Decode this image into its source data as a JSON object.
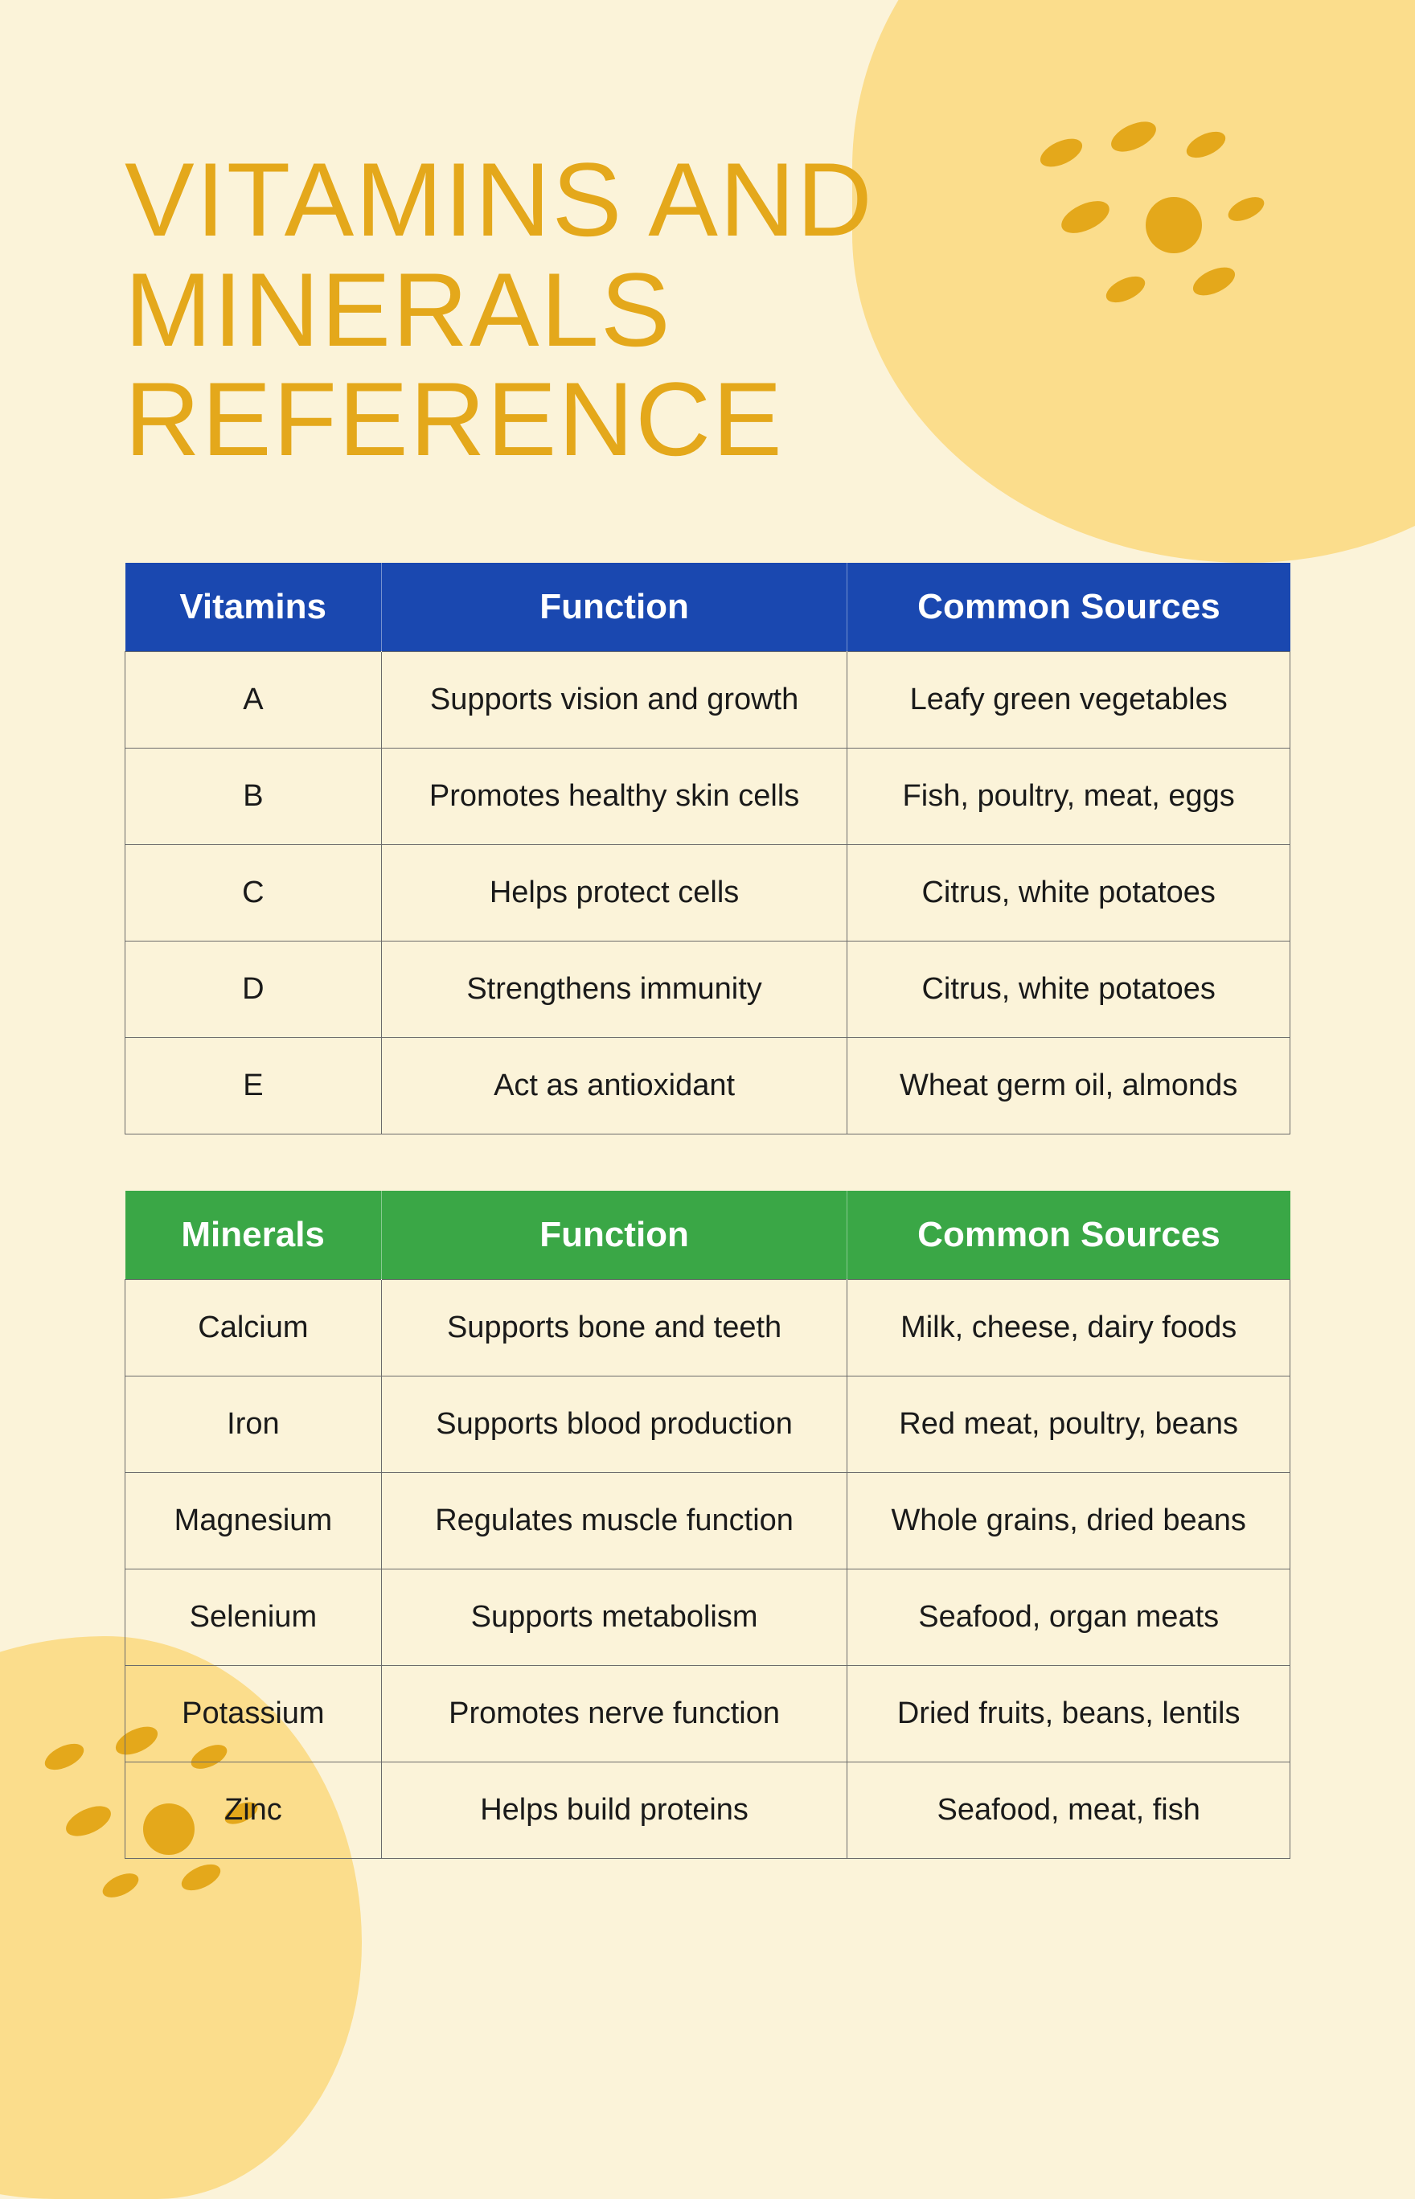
{
  "title_line1": "VITAMINS AND",
  "title_line2": "MINERALS REFERENCE",
  "colors": {
    "background": "#fbf3d9",
    "blob": "#fbdd8c",
    "dot": "#e4a81b",
    "title": "#e4a81b",
    "vitamins_header_bg": "#1a48b0",
    "minerals_header_bg": "#3aa746",
    "header_text": "#ffffff",
    "cell_text": "#1a1a1a",
    "cell_border": "#6b6b6b"
  },
  "vitamins": {
    "headers": [
      "Vitamins",
      "Function",
      "Common Sources"
    ],
    "rows": [
      [
        "A",
        "Supports vision and growth",
        "Leafy green vegetables"
      ],
      [
        "B",
        "Promotes healthy skin cells",
        "Fish, poultry, meat, eggs"
      ],
      [
        "C",
        "Helps protect cells",
        "Citrus, white potatoes"
      ],
      [
        "D",
        "Strengthens immunity",
        "Citrus, white potatoes"
      ],
      [
        "E",
        "Act as antioxidant",
        "Wheat germ oil, almonds"
      ]
    ]
  },
  "minerals": {
    "headers": [
      "Minerals",
      "Function",
      "Common Sources"
    ],
    "rows": [
      [
        "Calcium",
        "Supports bone and teeth",
        "Milk, cheese, dairy foods"
      ],
      [
        "Iron",
        "Supports blood production",
        "Red meat, poultry, beans"
      ],
      [
        "Magnesium",
        "Regulates muscle function",
        "Whole grains, dried beans"
      ],
      [
        "Selenium",
        "Supports metabolism",
        "Seafood, organ meats"
      ],
      [
        "Potassium",
        "Promotes nerve function",
        "Dried fruits, beans, lentils"
      ],
      [
        "Zinc",
        "Helps build proteins",
        "Seafood, meat, fish"
      ]
    ]
  }
}
